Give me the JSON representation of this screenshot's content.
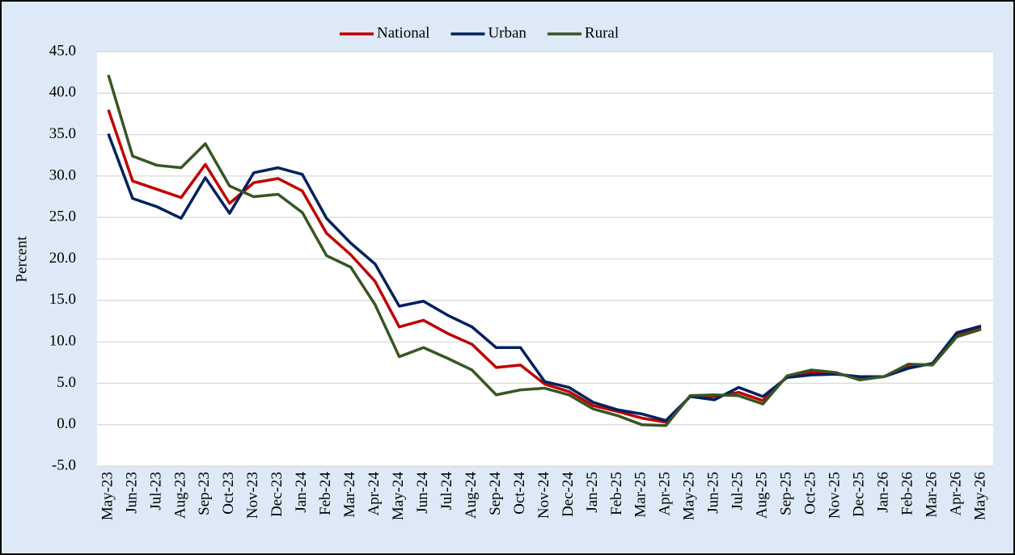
{
  "chart_data": {
    "type": "line",
    "y_label": "Percent",
    "categories": [
      "May-23",
      "Jun-23",
      "Jul-23",
      "Aug-23",
      "Sep-23",
      "Oct-23",
      "Nov-23",
      "Dec-23",
      "Jan-24",
      "Feb-24",
      "Mar-24",
      "Apr-24",
      "May-24",
      "Jun-24",
      "Jul-24",
      "Aug-24",
      "Sep-24",
      "Oct-24",
      "Nov-24",
      "Dec-24",
      "Jan-25",
      "Feb-25",
      "Mar-25",
      "Apr-25",
      "May-25",
      "Jun-25",
      "Jul-25",
      "Aug-25",
      "Sep-25",
      "Oct-25",
      "Nov-25",
      "Dec-25",
      "Jan-26",
      "Feb-26",
      "Mar-26",
      "Apr-26",
      "May-26"
    ],
    "series": [
      {
        "name": "National",
        "color": "#c00000",
        "values": [
          38.0,
          29.4,
          28.4,
          27.4,
          31.4,
          26.7,
          29.2,
          29.7,
          28.2,
          23.1,
          20.5,
          17.3,
          11.8,
          12.6,
          11.0,
          9.7,
          6.9,
          7.2,
          4.9,
          4.0,
          2.3,
          1.6,
          0.8,
          0.3,
          3.4,
          3.4,
          3.9,
          2.9,
          5.8,
          6.3,
          6.2,
          5.6,
          5.8,
          7.1,
          7.3,
          10.9,
          11.7
        ]
      },
      {
        "name": "Urban",
        "color": "#002060",
        "values": [
          35.1,
          27.3,
          26.3,
          24.9,
          29.8,
          25.5,
          30.4,
          31.0,
          30.2,
          24.9,
          21.9,
          19.4,
          14.3,
          14.9,
          13.2,
          11.8,
          9.3,
          9.3,
          5.2,
          4.5,
          2.7,
          1.8,
          1.3,
          0.5,
          3.4,
          3.0,
          4.5,
          3.4,
          5.7,
          6.0,
          6.1,
          5.8,
          5.8,
          6.8,
          7.4,
          11.1,
          11.9
        ]
      },
      {
        "name": "Rural",
        "color": "#375623",
        "values": [
          42.2,
          32.4,
          31.3,
          31.0,
          33.9,
          28.8,
          27.5,
          27.8,
          25.6,
          20.4,
          19.0,
          14.5,
          8.2,
          9.3,
          8.0,
          6.6,
          3.6,
          4.2,
          4.4,
          3.6,
          1.9,
          1.1,
          0.0,
          -0.1,
          3.5,
          3.6,
          3.5,
          2.5,
          5.9,
          6.6,
          6.3,
          5.4,
          5.8,
          7.3,
          7.2,
          10.6,
          11.5
        ]
      }
    ],
    "ylim": [
      -5,
      45
    ],
    "yticks": [
      {
        "value": -5,
        "label": "-5.0"
      },
      {
        "value": 0,
        "label": "0.0"
      },
      {
        "value": 5,
        "label": "5.0"
      },
      {
        "value": 10,
        "label": "10.0"
      },
      {
        "value": 15,
        "label": "15.0"
      },
      {
        "value": 20,
        "label": "20.0"
      },
      {
        "value": 25,
        "label": "25.0"
      },
      {
        "value": 30,
        "label": "30.0"
      },
      {
        "value": 35,
        "label": "35.0"
      },
      {
        "value": 40,
        "label": "40.0"
      },
      {
        "value": 45,
        "label": "45.0"
      }
    ],
    "grid": true,
    "legend": "top"
  }
}
